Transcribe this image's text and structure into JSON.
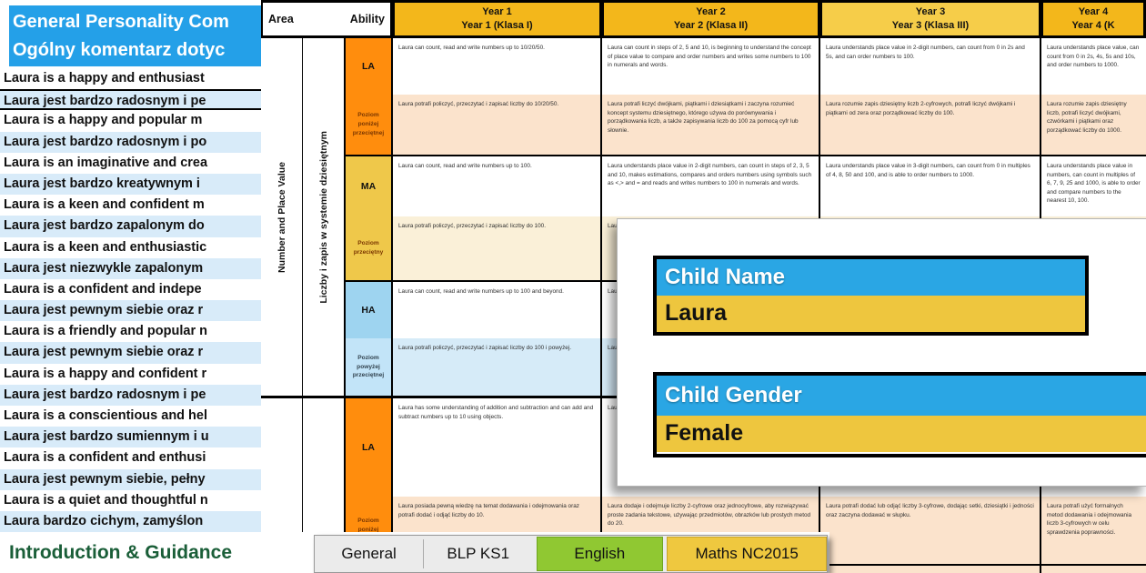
{
  "colors": {
    "panel_header_blue": "#24A0E8",
    "row_stripe_blue": "#D8EBF9",
    "header_gold": "#F3B71B",
    "header_gold_light": "#F6CD49",
    "ability_low_orange": "#FF8D0D",
    "ability_mid_gold": "#EFC84A",
    "ability_high_blue": "#9ED4F0",
    "cell_peach": "#FBE3CC",
    "cell_cream": "#FAF0D8",
    "cell_lightblue": "#D6EBF8",
    "child_label_blue": "#2AA6E4",
    "child_value_gold": "#EEC63E",
    "tab_green": "#90C832",
    "tab_gold": "#EFC83F",
    "intro_green": "#1A5E38"
  },
  "comments_panel": {
    "title_en": "General Personality Com",
    "title_pl": "Ogólny komentarz dotyc",
    "selected_index": 1,
    "rows": [
      "Laura is a happy and enthusiast",
      "Laura jest bardzo radosnym i pe",
      "Laura is a happy and popular m",
      "Laura jest bardzo radosnym i po",
      "Laura is an imaginative and crea",
      "Laura jest bardzo kreatywnym i",
      "Laura is a keen and confident m",
      "Laura jest bardzo zapalonym do",
      "Laura is a keen and enthusiastic",
      "Laura jest niezwykle zapalonym",
      "Laura is a confident and indepe",
      "Laura jest pewnym siebie oraz r",
      "Laura is a friendly and popular n",
      "Laura jest pewnym siebie oraz r",
      "Laura is a happy and confident r",
      "Laura jest bardzo radosnym i pe",
      "Laura is a conscientious and hel",
      "Laura jest bardzo sumiennym i u",
      "Laura is a confident and enthusi",
      "Laura jest pewnym siebie, pełny",
      "Laura is a quiet and thoughtful n",
      "Laura bardzo cichym, zamyślon"
    ]
  },
  "grid": {
    "header": {
      "area": "Area",
      "ability": "Ability",
      "year1_line1": "Year 1",
      "year1_line2": "Year 1 (Klasa I)",
      "year2_line1": "Year 2",
      "year2_line2": "Year 2 (Klasa II)",
      "year3_line1": "Year 3",
      "year3_line2": "Year 3 (Klasa III)",
      "year4_line1": "Year 4",
      "year4_line2": "Year 4 (K"
    },
    "area1": {
      "en": "Number and Place Value",
      "pl": "Liczby i zapis w systemie dziesiętnym"
    },
    "ability": {
      "la": "LA",
      "la_desc": "Poziom poniżej przeciętnej",
      "ma": "MA",
      "ma_desc": "Poziom przeciętny",
      "ha": "HA",
      "ha_desc": "Poziom powyżej przeciętnej",
      "la2": "LA",
      "la2_desc": "Poziom poniżej przeciętnej"
    },
    "cells": {
      "y1": {
        "la_en": "Laura can count, read and write numbers up to 10/20/50.",
        "la_pl": "Laura potrafi policzyć, przeczytać i zapisać liczby do 10/20/50.",
        "ma_en": "Laura can count, read and write numbers up to 100.",
        "ma_pl": "Laura potrafi policzyć, przeczytać i zapisać liczby do 100.",
        "ha_en": "Laura can count, read and write numbers up to 100 and beyond.",
        "ha_pl": "Laura potrafi policzyć, przeczytać i zapisać liczby do 100 i powyżej.",
        "add_la_en": "Laura has some understanding of addition and subtraction and can add and subtract numbers up to 10 using objects.",
        "add_la_pl": "Laura posiada pewną wiedzę na temat dodawania i odejmowania oraz potrafi dodać i odjąć liczby do 10."
      },
      "y2": {
        "la_en": "Laura can count in steps of 2, 5 and 10, is beginning to understand the concept of place value to compare and order numbers and writes some numbers to 100 in numerals and words.",
        "la_pl": "Laura potrafi liczyć dwójkami, piątkami i dziesiątkami i zaczyna rozumieć koncept systemu dziesiętnego, którego używa do porównywania i porządkowania liczb, a także zapisywania liczb do 100 za pomocą cyfr lub słownie.",
        "ma_en": "Laura understands place value in 2-digit numbers, can count in steps of 2, 3, 5 and 10, makes estimations, compares and orders numbers using symbols such as <,> and = and reads and writes numbers to 100 in numerals and words.",
        "ma_pl": "Laura",
        "ha_en": "Laura",
        "ha_pl": "Laura",
        "add_la_en": "Laura",
        "add_la_pl": "Laura dodaje i odejmuje liczby 2-cyfrowe oraz jednocyfrowe, aby rozwiązywać proste zadania tekstowe, używając przedmiotów, obrazków lub prostych metod do 20."
      },
      "y3": {
        "la_en": "Laura understands place value in 2-digit numbers, can count from 0 in 2s and 5s, and can order numbers to 100.",
        "la_pl": "Laura rozumie zapis dziesiętny liczb 2-cyfrowych, potrafi liczyć dwójkami i piątkami od zera oraz porządkować liczby do 100.",
        "ma_en": "Laura understands place value in 3-digit numbers, can count from 0 in multiples of 4, 8, 50 and 100, and is able to order numbers to 1000.",
        "ma_pl": "",
        "ha_en": "",
        "ha_pl": "",
        "add_la_en": "",
        "add_la_pl": "Laura potrafi dodać lub odjąć liczby 3-cyfrowe, dodając setki, dziesiątki i jedności oraz zaczyna dodawać w słupku."
      },
      "y4": {
        "la_en": "Laura understands place value, can count from 0 in 2s, 4s, 5s and 10s, and order numbers to 1000.",
        "la_pl": "Laura rozumie zapis dziesiętny liczb, potrafi liczyć dwójkami, czwórkami i piątkami oraz porządkować liczby do 1000.",
        "ma_en": "Laura understands place value in numbers, can count in multiples of 6, 7, 9, 25 and 1000, is able to order and compare numbers to the nearest 10, 100.",
        "ma_pl": "",
        "ha_en": "",
        "ha_pl": "",
        "add_la_en": "",
        "add_la_pl": "Laura potrafi użyć formalnych metod dodawania i odejmowania liczb 3-cyfrowych w celu sprawdzenia poprawności."
      }
    }
  },
  "child_panel": {
    "name_label": "Child Name",
    "name_value": "Laura",
    "gender_label": "Child Gender",
    "gender_value": "Female"
  },
  "sheet_tabs": {
    "intro_label": "Introduction & Guidance",
    "tabs": [
      {
        "label": "General"
      },
      {
        "label": "BLP KS1"
      },
      {
        "label": "English"
      },
      {
        "label": "Maths NC2015"
      }
    ]
  }
}
